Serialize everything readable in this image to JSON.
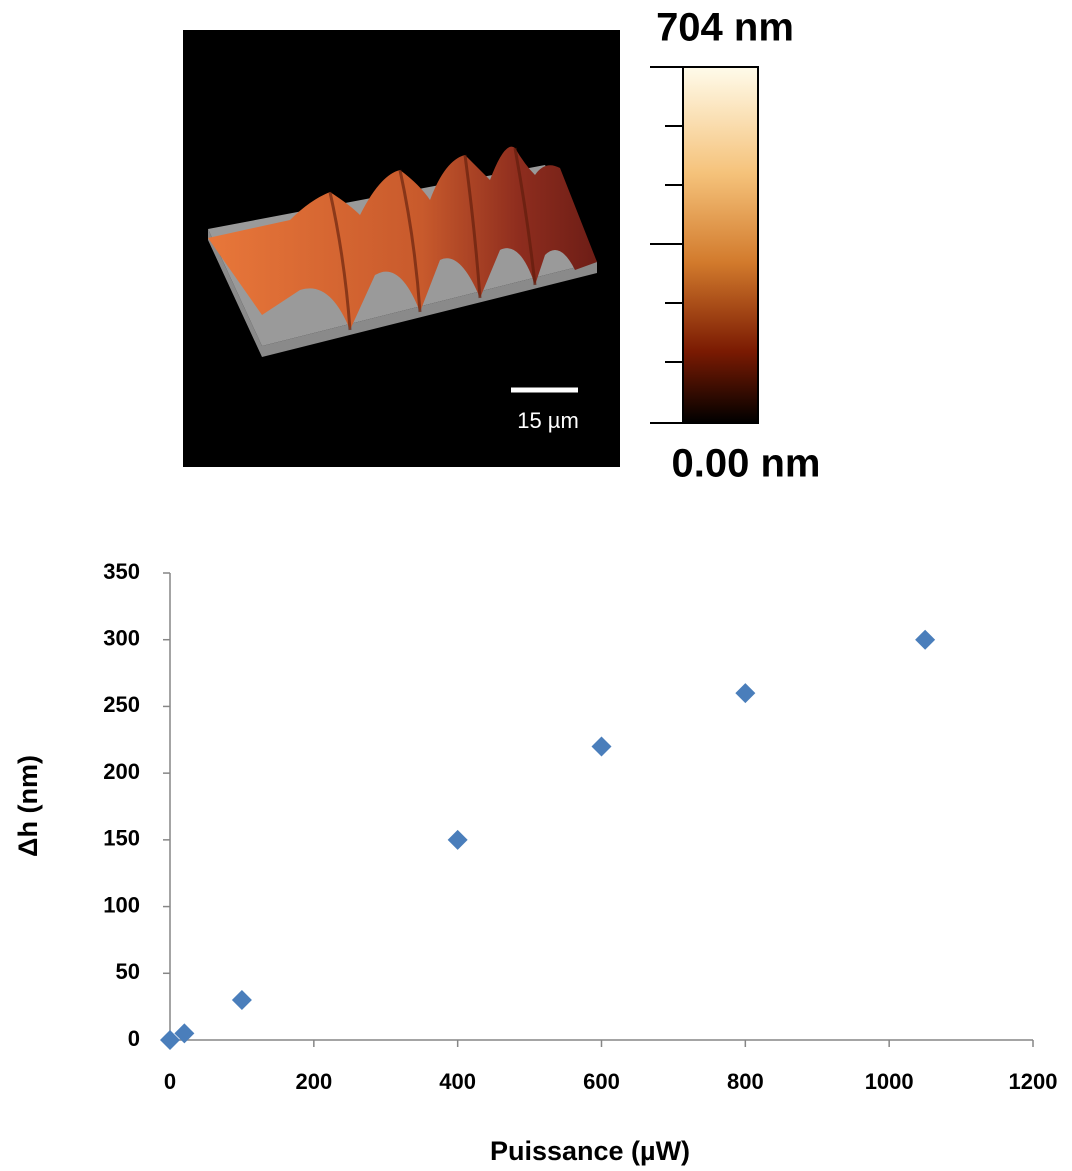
{
  "afm_image": {
    "scale_bar_label": "15 µm",
    "colorbar_max_label": "704 nm",
    "colorbar_min_label": "0.00 nm"
  },
  "chart_data": {
    "type": "scatter",
    "x_label": "Puissance (µW)",
    "y_label": "Δh (nm)",
    "series": [
      {
        "name": "Δh",
        "color": "#4a7ebb",
        "x": [
          0,
          20,
          100,
          400,
          600,
          800,
          1050
        ],
        "values": [
          0,
          5,
          30,
          150,
          220,
          260,
          300
        ]
      }
    ],
    "xlim": [
      0,
      1200
    ],
    "xticks": [
      0,
      200,
      400,
      600,
      800,
      1000,
      1200
    ],
    "ylim": [
      0,
      350
    ],
    "yticks": [
      0,
      50,
      100,
      150,
      200,
      250,
      300,
      350
    ],
    "grid": false
  }
}
